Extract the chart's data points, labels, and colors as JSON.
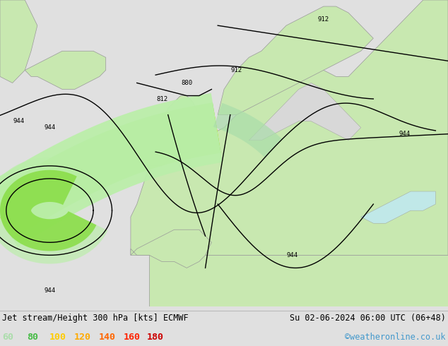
{
  "title_left": "Jet stream/Height 300 hPa [kts] ECMWF",
  "title_right": "Su 02-06-2024 06:00 UTC (06+48)",
  "credit": "©weatheronline.co.uk",
  "legend_labels": [
    "60",
    "80",
    "100",
    "120",
    "140",
    "160",
    "180"
  ],
  "legend_text_colors": [
    "#aaddaa",
    "#44bb44",
    "#ffcc00",
    "#ffaa00",
    "#ff6600",
    "#ff2200",
    "#cc0000"
  ],
  "ocean_color": "#d8d8d8",
  "land_color": "#c8e8b0",
  "fig_bg": "#e0e0e0",
  "bottom_bg": "#f0f0f0",
  "jet_colors": [
    "#bbeeaa",
    "#88dd44",
    "#ccee44",
    "#ffee00",
    "#ffcc00",
    "#ffaa00"
  ],
  "jet_half_widths": [
    5.5,
    4.0,
    2.8,
    1.8,
    0.9,
    0.4
  ],
  "contour_lw": 1.0,
  "label_fontsize": 6.5
}
